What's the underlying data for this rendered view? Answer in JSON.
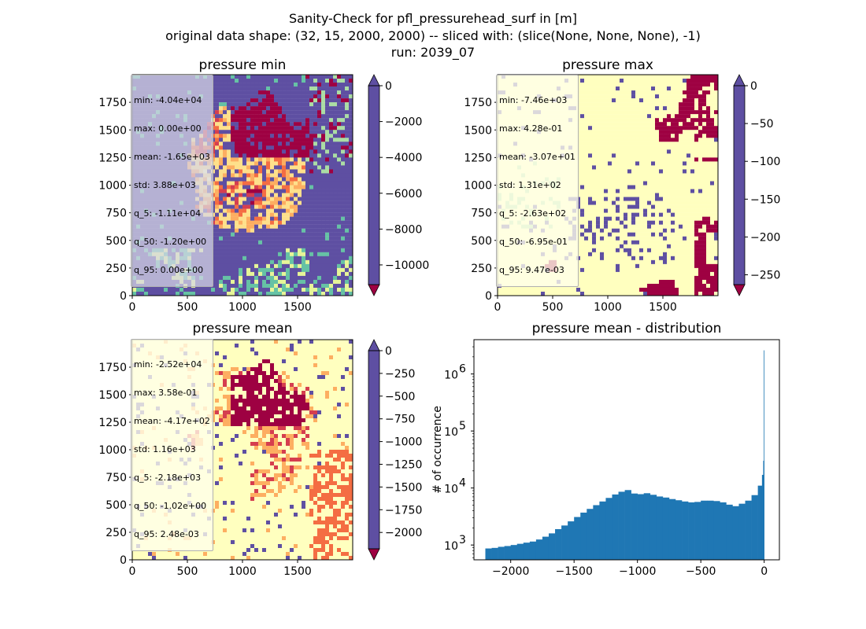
{
  "figure": {
    "suptitle_lines": [
      "Sanity-Check for pfl_pressurehead_surf in [m]",
      "original data shape: (32, 15, 2000, 2000) -- sliced with: (slice(None, None, None), -1)",
      "run: 2039_07"
    ]
  },
  "chart_data": [
    {
      "type": "heatmap",
      "title": "pressure min",
      "xlim": [
        0,
        2000
      ],
      "ylim": [
        0,
        2000
      ],
      "xticks": [
        0,
        500,
        1000,
        1500
      ],
      "yticks": [
        0,
        250,
        500,
        750,
        1000,
        1250,
        1500,
        1750
      ],
      "colormap": "Spectral",
      "colorbar": {
        "vmin": -11100,
        "vmax": 0,
        "ticks": [
          0,
          -2000,
          -4000,
          -6000,
          -8000,
          -10000
        ],
        "extend": "both"
      },
      "stats": [
        "min: -4.04e+04",
        "max: 0.00e+00",
        "mean: -1.65e+03",
        "std: 3.88e+03",
        "q_5: -1.11e+04",
        "q_50: -1.20e+00",
        "q_95: 0.00e+00"
      ]
    },
    {
      "type": "heatmap",
      "title": "pressure max",
      "xlim": [
        0,
        2000
      ],
      "ylim": [
        0,
        2000
      ],
      "xticks": [
        0,
        500,
        1000,
        1500
      ],
      "yticks": [
        0,
        250,
        500,
        750,
        1000,
        1250,
        1500,
        1750
      ],
      "colormap": "Spectral",
      "colorbar": {
        "vmin": -263,
        "vmax": 0,
        "ticks": [
          0,
          -50,
          -100,
          -150,
          -200,
          -250
        ],
        "extend": "both"
      },
      "stats": [
        "min: -7.46e+03",
        "max: 4.28e-01",
        "mean: -3.07e+01",
        "std: 1.31e+02",
        "q_5: -2.63e+02",
        "q_50: -6.95e-01",
        "q_95: 9.47e-03"
      ]
    },
    {
      "type": "heatmap",
      "title": "pressure mean",
      "xlim": [
        0,
        2000
      ],
      "ylim": [
        0,
        2000
      ],
      "xticks": [
        0,
        500,
        1000,
        1500
      ],
      "yticks": [
        0,
        250,
        500,
        750,
        1000,
        1250,
        1500,
        1750
      ],
      "colormap": "Spectral",
      "colorbar": {
        "vmin": -2180,
        "vmax": 0,
        "ticks": [
          0,
          -250,
          -500,
          -750,
          -1000,
          -1250,
          -1500,
          -1750,
          -2000
        ],
        "extend": "both"
      },
      "stats": [
        "min: -2.52e+04",
        "max: 3.58e-01",
        "mean: -4.17e+02",
        "std: 1.16e+03",
        "q_5: -2.18e+03",
        "q_50: -1.02e+00",
        "q_95: 2.48e-03"
      ]
    },
    {
      "type": "bar",
      "title": "pressure mean - distribution",
      "ylabel": "# of occurrence",
      "xlabel": "",
      "yscale": "log",
      "color": "#1f77b4",
      "xlim": [
        -2290,
        120
      ],
      "ylim": [
        550,
        4000000
      ],
      "xticks": [
        -2000,
        -1500,
        -1000,
        -500,
        0
      ],
      "yticks_exp": [
        3,
        4,
        5,
        6
      ],
      "x": [
        -2175,
        -2125,
        -2075,
        -2025,
        -1975,
        -1925,
        -1875,
        -1825,
        -1775,
        -1725,
        -1675,
        -1625,
        -1575,
        -1525,
        -1475,
        -1425,
        -1375,
        -1325,
        -1275,
        -1225,
        -1175,
        -1125,
        -1075,
        -1025,
        -975,
        -925,
        -875,
        -825,
        -775,
        -725,
        -675,
        -625,
        -575,
        -525,
        -475,
        -425,
        -375,
        -325,
        -275,
        -225,
        -175,
        -125,
        -75,
        -25,
        -10,
        -5,
        -1
      ],
      "values": [
        870,
        890,
        930,
        960,
        1000,
        1050,
        1100,
        1150,
        1250,
        1400,
        1600,
        1900,
        2200,
        2600,
        3100,
        3700,
        4300,
        5000,
        5800,
        6700,
        7700,
        8600,
        9200,
        8000,
        7800,
        8100,
        7600,
        7100,
        6800,
        6400,
        6100,
        5800,
        5600,
        5700,
        6000,
        6000,
        5900,
        5600,
        5100,
        4800,
        5300,
        6000,
        7500,
        11000,
        17000,
        30000,
        2600000
      ]
    }
  ],
  "colors": {
    "spectral": [
      "#5e4fa2",
      "#3288bd",
      "#66c2a5",
      "#abdda4",
      "#e6f598",
      "#ffffbf",
      "#fee08b",
      "#fdae61",
      "#f46d43",
      "#d53e4f",
      "#9e0142"
    ],
    "hist_bar": "#1f77b4"
  }
}
